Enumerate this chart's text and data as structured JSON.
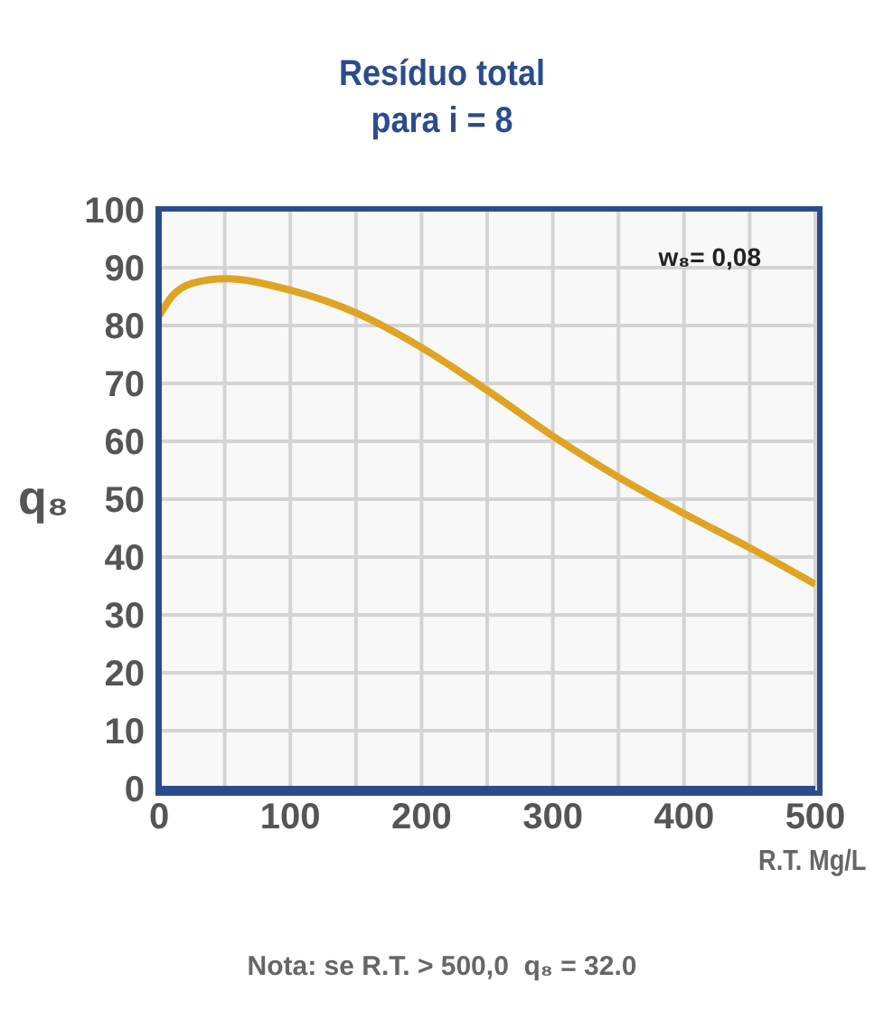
{
  "chart_data": {
    "type": "line",
    "title": "Resíduo total",
    "subtitle": "para i = 8",
    "xlabel": "R.T. Mg/L",
    "ylabel": "q₈",
    "x": [
      0,
      10,
      25,
      50,
      100,
      150,
      200,
      250,
      300,
      350,
      400,
      450,
      500
    ],
    "series": [
      {
        "color": "#e0a424",
        "values": [
          81.7,
          85.1,
          87.3,
          88.1,
          86.1,
          82.2,
          76.2,
          68.8,
          60.9,
          53.8,
          47.5,
          41.6,
          35.3
        ]
      }
    ],
    "xlim": [
      0,
      500
    ],
    "xticks": [
      0,
      {
        "value": 50,
        "label": null
      },
      100,
      {
        "value": 150,
        "label": null
      },
      200,
      {
        "value": 250,
        "label": null
      },
      300,
      {
        "value": 350,
        "label": null
      },
      400,
      {
        "value": 450,
        "label": null
      },
      500
    ],
    "ylim": [
      0,
      100
    ],
    "yticks": [
      0,
      10,
      20,
      30,
      40,
      50,
      60,
      70,
      80,
      90,
      100
    ],
    "grid": true,
    "legend": false,
    "marker": "none",
    "line_style": "solid",
    "annotations": [
      "w₈= 0,08",
      "Nota: se R.T. > 500,0  q₈ = 32.0"
    ]
  }
}
